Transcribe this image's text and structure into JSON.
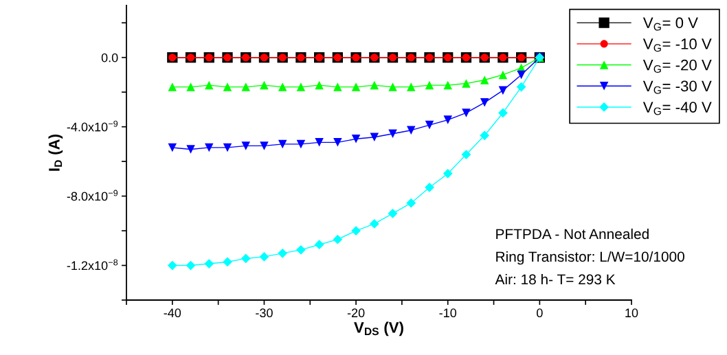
{
  "chart_data": {
    "type": "line",
    "xlabel": "V$_{DS}$ (V)",
    "ylabel": "I$_{D}$ (A)",
    "x": [
      -40,
      -38,
      -36,
      -34,
      -32,
      -30,
      -28,
      -26,
      -24,
      -22,
      -20,
      -18,
      -16,
      -14,
      -12,
      -10,
      -8,
      -6,
      -4,
      -2,
      0
    ],
    "series": [
      {
        "name": "V$_{G}$= 0 V",
        "color": "#000000",
        "marker": "square",
        "values": [
          0,
          0,
          0,
          0,
          0,
          0,
          0,
          0,
          0,
          0,
          0,
          0,
          0,
          0,
          0,
          0,
          0,
          0,
          0,
          0,
          0
        ]
      },
      {
        "name": "V$_{G}$= -10 V",
        "color": "#ff0000",
        "marker": "circle",
        "values": [
          0,
          0,
          0,
          0,
          0,
          0,
          0,
          0,
          0,
          0,
          0,
          0,
          0,
          0,
          0,
          0,
          0,
          0,
          0,
          0,
          0
        ]
      },
      {
        "name": "V$_{G}$= -20 V",
        "color": "#00ff00",
        "marker": "triangle",
        "values": [
          -1.7e-09,
          -1.7e-09,
          -1.6e-09,
          -1.7e-09,
          -1.7e-09,
          -1.6e-09,
          -1.7e-09,
          -1.7e-09,
          -1.6e-09,
          -1.7e-09,
          -1.7e-09,
          -1.6e-09,
          -1.7e-09,
          -1.7e-09,
          -1.6e-09,
          -1.6e-09,
          -1.5e-09,
          -1.3e-09,
          -1e-09,
          -6e-10,
          0
        ]
      },
      {
        "name": "V$_{G}$= -30 V",
        "color": "#0000ff",
        "marker": "triangle_down",
        "values": [
          -5.2e-09,
          -5.3e-09,
          -5.2e-09,
          -5.2e-09,
          -5.1e-09,
          -5.1e-09,
          -5e-09,
          -5e-09,
          -4.9e-09,
          -4.9e-09,
          -4.7e-09,
          -4.6e-09,
          -4.4e-09,
          -4.2e-09,
          -3.9e-09,
          -3.6e-09,
          -3.2e-09,
          -2.6e-09,
          -1.9e-09,
          -1e-09,
          0
        ]
      },
      {
        "name": "V$_{G}$= -40 V",
        "color": "#00ffff",
        "marker": "diamond",
        "values": [
          -1.2e-08,
          -1.2e-08,
          -1.19e-08,
          -1.18e-08,
          -1.16e-08,
          -1.15e-08,
          -1.13e-08,
          -1.11e-08,
          -1.08e-08,
          -1.05e-08,
          -1e-08,
          -9.6e-09,
          -9e-09,
          -8.4e-09,
          -7.5e-09,
          -6.7e-09,
          -5.6e-09,
          -4.5e-09,
          -3.2e-09,
          -1.7e-09,
          0
        ]
      }
    ],
    "xlim": [
      -45,
      10
    ],
    "xticks": [
      {
        "value": -45,
        "label": null
      },
      -40,
      {
        "value": -35,
        "label": null
      },
      -30,
      {
        "value": -25,
        "label": null
      },
      -20,
      {
        "value": -15,
        "label": null
      },
      -10,
      {
        "value": -5,
        "label": null
      },
      0,
      {
        "value": 5,
        "label": null
      },
      10
    ],
    "ylim": [
      -1.4e-08,
      3e-09
    ],
    "yticks": [
      {
        "value": -1.4e-08,
        "label": null
      },
      {
        "value": -1.2e-08,
        "label": "-1.2x10$^{−8}$"
      },
      {
        "value": -1e-08,
        "label": null
      },
      {
        "value": -8e-09,
        "label": "-8.0x10$^{−9}$"
      },
      {
        "value": -6e-09,
        "label": null
      },
      {
        "value": -4e-09,
        "label": "-4.0x10$^{−9}$"
      },
      {
        "value": -2e-09,
        "label": null
      },
      {
        "value": 0,
        "label": "0.0"
      },
      {
        "value": 2e-09,
        "label": null
      }
    ],
    "legend": "top right",
    "grid": false,
    "line_style": "solid",
    "annotations": [
      "PFTPDA - Not Annealed",
      "Ring Transistor: L/W=10/1000",
      "Air: 18 h- T= 293 K"
    ]
  }
}
